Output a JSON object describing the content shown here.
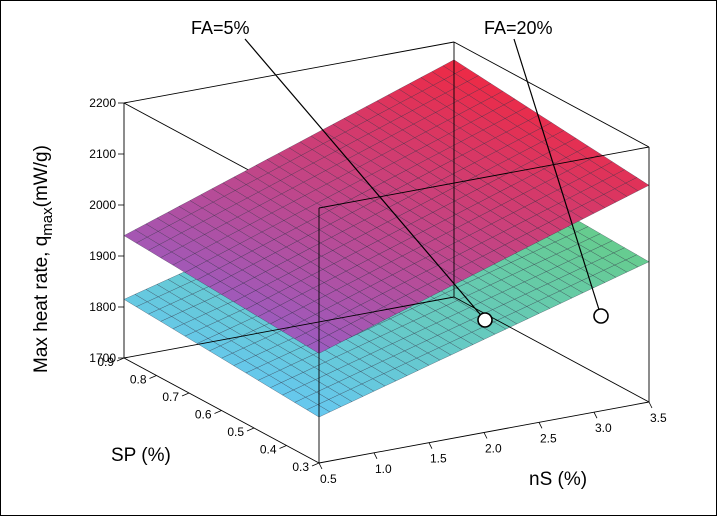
{
  "chart_data": {
    "type": "surface",
    "title": "",
    "xlabel": "nS (%)",
    "ylabel": "SP (%)",
    "zlabel_main": "Max heat rate, q",
    "zlabel_sub": "max",
    "zlabel_unit": "(mW/g)",
    "x_ticks": [
      "0.5",
      "1.0",
      "1.5",
      "2.0",
      "2.5",
      "3.0",
      "3.5"
    ],
    "y_ticks": [
      "0.3",
      "0.4",
      "0.5",
      "0.6",
      "0.7",
      "0.8",
      "0.9"
    ],
    "z_ticks": [
      "1700",
      "1800",
      "1900",
      "2000",
      "2100",
      "2200"
    ],
    "xlim": [
      0.5,
      3.5
    ],
    "ylim": [
      0.3,
      0.9
    ],
    "zlim": [
      1700,
      2200
    ],
    "series": [
      {
        "name": "FA=5%",
        "corners": {
          "x0y0": 1790,
          "x1y0": 1975,
          "x0y1": 1815,
          "x1y1": 1990
        },
        "colors": {
          "low": "#66c8f0",
          "high": "#66cc88"
        }
      },
      {
        "name": "FA=20%",
        "corners": {
          "x0y0": 1915,
          "x1y0": 2125,
          "x0y1": 1940,
          "x1y1": 2165
        },
        "colors": {
          "low": "#9c5cc0",
          "high": "#ee2a44"
        }
      }
    ],
    "annotations": [
      {
        "label": "FA=5%"
      },
      {
        "label": "FA=20%"
      }
    ]
  }
}
